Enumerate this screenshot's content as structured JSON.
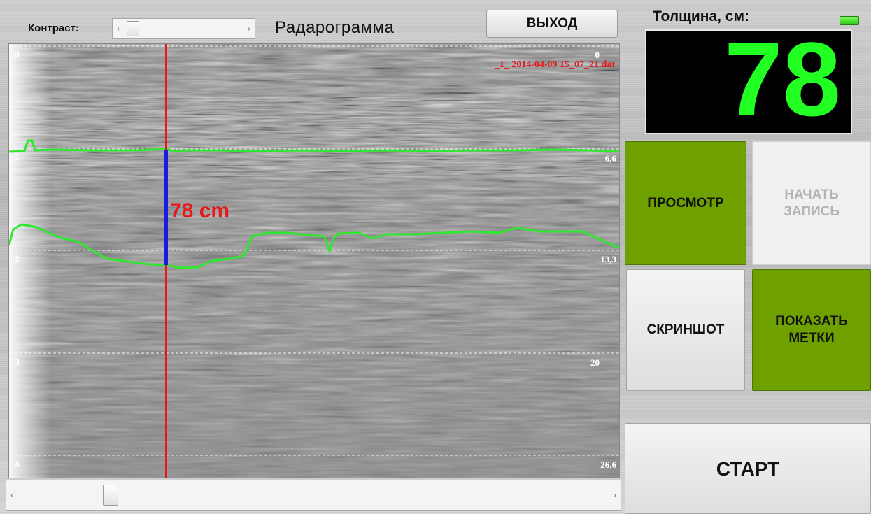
{
  "header": {
    "contrast_label": "Контраст:",
    "title": "Радарограмма",
    "exit_label": "ВЫХОД"
  },
  "radargram": {
    "file_label": "_1_ 2014-04-09 15_07_21.dat",
    "thickness_annotation": "78 cm",
    "left_depth_labels": [
      "0",
      "1",
      "2",
      "3",
      "4"
    ],
    "right_depth_labels": [
      "0",
      "6,6",
      "13,3",
      "20",
      "26,6"
    ],
    "colors": {
      "cursor_line": "#e41a1a",
      "thickness_bar": "#1a1ae4",
      "layer_lines": "#2ee82e",
      "annotation_text": "#e41a1a",
      "file_label": "#e41a1a"
    }
  },
  "panel": {
    "thickness_label": "Толщина, см:",
    "thickness_value": "78",
    "view_label": "ПРОСМОТР",
    "record_label": "НАЧАТЬ ЗАПИСЬ",
    "screenshot_label": "СКРИНШОТ",
    "marks_label": "ПОКАЗАТЬ МЕТКИ",
    "start_label": "СТАРТ",
    "colors": {
      "value_green": "#22ff22",
      "active_button": "#6ea100"
    }
  },
  "scrollbars": {
    "left_arrow": "‹",
    "right_arrow": "›"
  }
}
